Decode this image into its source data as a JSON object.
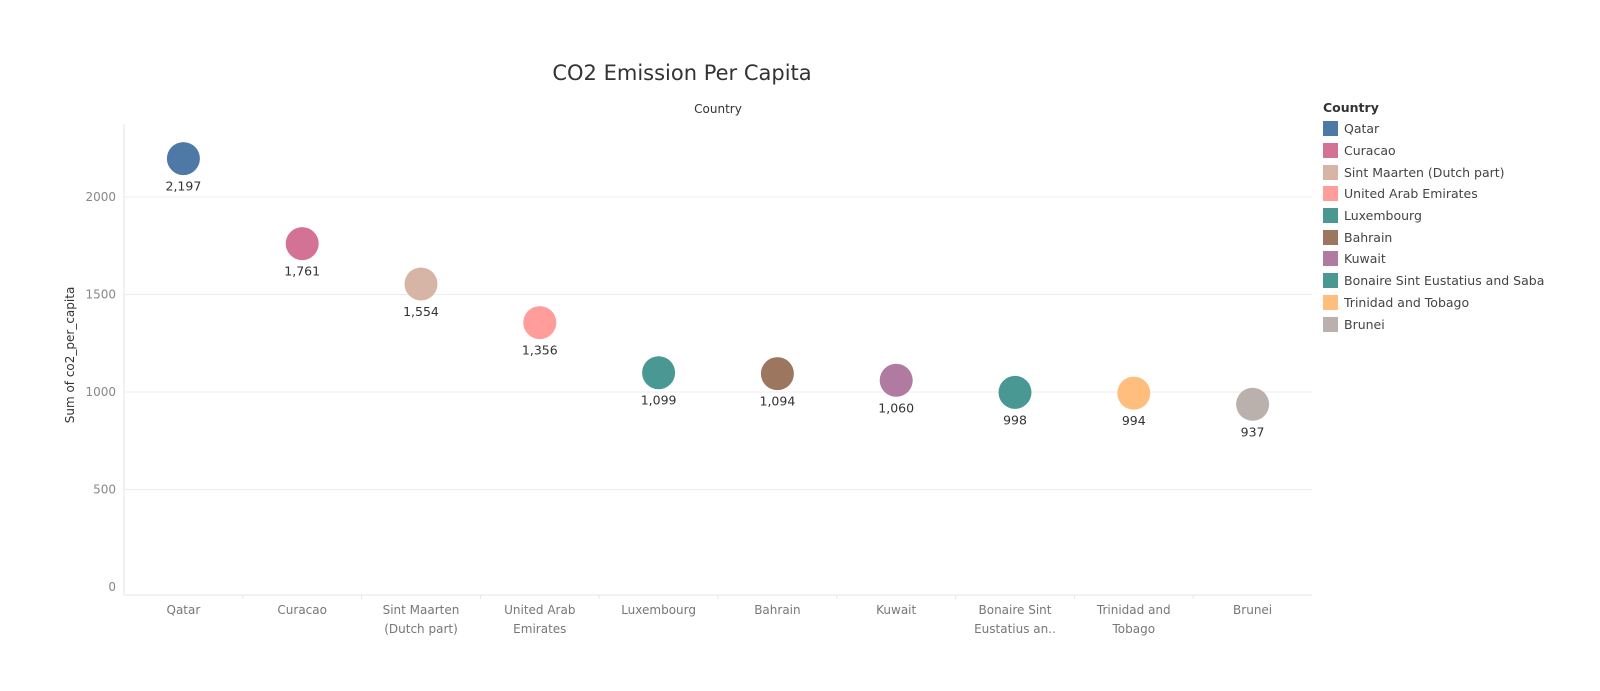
{
  "chart_data": {
    "type": "scatter",
    "title": "CO2 Emission Per Capita",
    "column_header": "Country",
    "ylabel": "Sum of co2_per_capita",
    "xlabel": "",
    "ylim": [
      0,
      2400
    ],
    "yticks": [
      0,
      500,
      1000,
      1500,
      2000
    ],
    "ytick_labels": [
      "0",
      "500",
      "1000",
      "1500",
      "2000"
    ],
    "grid": true,
    "legend_title": "Country",
    "legend_position": "right",
    "categories": [
      [
        "Qatar"
      ],
      [
        "Curacao"
      ],
      [
        "Sint Maarten",
        "(Dutch part)"
      ],
      [
        "United Arab",
        "Emirates"
      ],
      [
        "Luxembourg"
      ],
      [
        "Bahrain"
      ],
      [
        "Kuwait"
      ],
      [
        "Bonaire Sint",
        "Eustatius an.."
      ],
      [
        "Trinidad and",
        "Tobago"
      ],
      [
        "Brunei"
      ]
    ],
    "points": [
      {
        "country": "Qatar",
        "value": 2197,
        "label": "2,197",
        "color": "#4e79a7"
      },
      {
        "country": "Curacao",
        "value": 1761,
        "label": "1,761",
        "color": "#d37295"
      },
      {
        "country": "Sint Maarten (Dutch part)",
        "value": 1554,
        "label": "1,554",
        "color": "#d7b5a6"
      },
      {
        "country": "United Arab Emirates",
        "value": 1356,
        "label": "1,356",
        "color": "#ff9d9a"
      },
      {
        "country": "Luxembourg",
        "value": 1099,
        "label": "1,099",
        "color": "#499894"
      },
      {
        "country": "Bahrain",
        "value": 1094,
        "label": "1,094",
        "color": "#9d7660"
      },
      {
        "country": "Kuwait",
        "value": 1060,
        "label": "1,060",
        "color": "#b07aa1"
      },
      {
        "country": "Bonaire Sint Eustatius and Saba",
        "value": 998,
        "label": "998",
        "color": "#499894"
      },
      {
        "country": "Trinidad and Tobago",
        "value": 994,
        "label": "994",
        "color": "#ffbe7d"
      },
      {
        "country": "Brunei",
        "value": 937,
        "label": "937",
        "color": "#bab0ac"
      }
    ]
  }
}
